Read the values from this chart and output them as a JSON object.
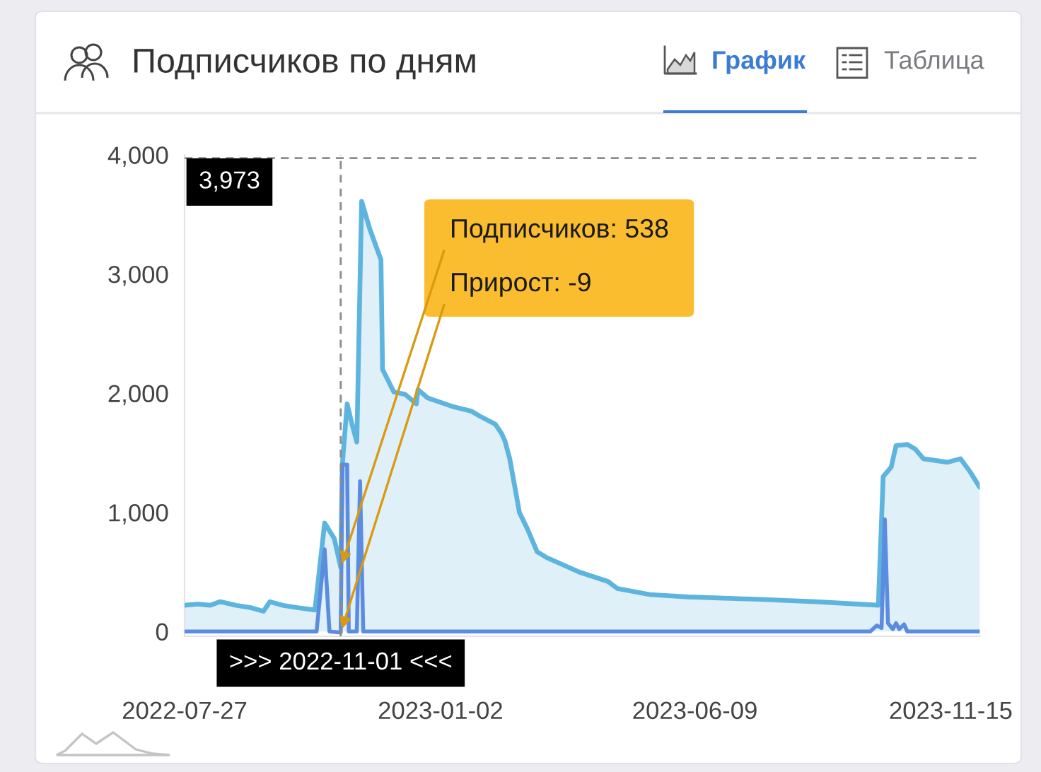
{
  "chart_data": {
    "type": "area",
    "title": "Подписчиков по дням",
    "x": [
      "2022-07-27",
      "2022-08-04",
      "2022-08-12",
      "2022-08-18",
      "2022-08-28",
      "2022-09-06",
      "2022-09-14",
      "2022-09-18",
      "2022-09-26",
      "2022-10-05",
      "2022-10-16",
      "2022-10-22",
      "2022-10-28",
      "2022-11-01",
      "2022-11-02",
      "2022-11-05",
      "2022-11-08",
      "2022-11-11",
      "2022-11-14",
      "2022-11-19",
      "2022-11-26",
      "2022-11-27",
      "2022-12-04",
      "2022-12-11",
      "2022-12-18",
      "2022-12-19",
      "2022-12-25",
      "2023-01-09",
      "2023-01-21",
      "2023-01-26",
      "2023-02-05",
      "2023-02-09",
      "2023-02-11",
      "2023-02-14",
      "2023-02-20",
      "2023-02-25",
      "2023-03-03",
      "2023-03-09",
      "2023-03-29",
      "2023-04-16",
      "2023-04-22",
      "2023-05-12",
      "2023-06-05",
      "2023-07-19",
      "2023-08-23",
      "2023-10-01",
      "2023-10-04",
      "2023-10-09",
      "2023-10-12",
      "2023-10-19",
      "2023-10-24",
      "2023-10-29",
      "2023-11-13",
      "2023-11-21",
      "2023-11-27",
      "2023-12-03"
    ],
    "series": [
      {
        "color": "#5db4de",
        "values": [
          220,
          230,
          220,
          250,
          220,
          200,
          170,
          250,
          220,
          200,
          180,
          910,
          780,
          538,
          1400,
          1910,
          1740,
          1590,
          3610,
          3380,
          3120,
          2200,
          2010,
          1990,
          1910,
          2030,
          1960,
          1890,
          1850,
          1810,
          1740,
          1660,
          1600,
          1450,
          1000,
          860,
          670,
          620,
          500,
          420,
          360,
          310,
          290,
          270,
          250,
          220,
          1300,
          1380,
          1560,
          1570,
          1530,
          1450,
          1420,
          1450,
          1340,
          1210
        ]
      },
      {
        "type": "line",
        "color": "#5b8ce0",
        "x": [
          "2022-07-27",
          "2022-10-17",
          "2022-10-22",
          "2022-10-25",
          "2022-11-01",
          "2022-11-02",
          "2022-11-05",
          "2022-11-06",
          "2022-11-11",
          "2022-11-13",
          "2022-11-15",
          "2023-09-26",
          "2023-09-30",
          "2023-10-03",
          "2023-10-05",
          "2023-10-07",
          "2023-10-10",
          "2023-10-12",
          "2023-10-14",
          "2023-10-17",
          "2023-10-19",
          "2023-12-03"
        ],
        "values": [
          0,
          0,
          690,
          0,
          -9,
          1400,
          1400,
          0,
          0,
          1260,
          0,
          0,
          50,
          30,
          940,
          70,
          20,
          70,
          20,
          60,
          0,
          0
        ]
      }
    ],
    "xlim": [
      "2022-07-27",
      "2023-12-03"
    ],
    "xticks": [
      "2022-07-27",
      "2023-01-02",
      "2023-06-09",
      "2023-11-15"
    ],
    "ylim": [
      -40,
      4000
    ],
    "yticks": [
      0,
      {
        "value": 1000,
        "label": "1,000"
      },
      {
        "value": 2000,
        "label": "2,000"
      },
      {
        "value": 3000,
        "label": "3,000"
      },
      {
        "value": 4000,
        "label": "4,000"
      }
    ],
    "ref_lines": [
      {
        "axis": "x",
        "value": "2022-11-01",
        "label": ">>> 2022-11-01 <<<",
        "color": "#8c8c8c",
        "line_style": "dashed"
      },
      {
        "axis": "y",
        "value": 3973,
        "label": "3,973",
        "color": "#8c8c8c",
        "line_style": "dashed"
      }
    ],
    "annotations": [
      "График",
      "Таблица",
      {
        "text": "Подписчиков: 538",
        "x": "2022-11-01",
        "y": 538
      },
      {
        "text": "Прирост: -9",
        "x": "2022-11-01",
        "y": -9
      }
    ]
  }
}
